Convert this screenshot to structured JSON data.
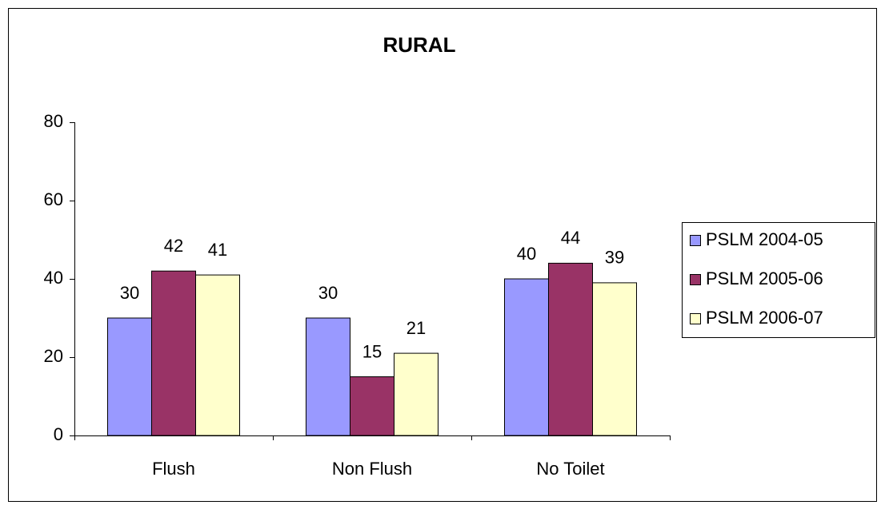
{
  "chart_data": {
    "type": "bar",
    "title": "RURAL",
    "categories": [
      "Flush",
      "Non Flush",
      "No Toilet"
    ],
    "series": [
      {
        "name": "PSLM 2004-05",
        "color": "#9999ff",
        "values": [
          30,
          30,
          40
        ]
      },
      {
        "name": "PSLM 2005-06",
        "color": "#993366",
        "values": [
          42,
          15,
          44
        ]
      },
      {
        "name": "PSLM 2006-07",
        "color": "#ffffcc",
        "values": [
          41,
          21,
          39
        ]
      }
    ],
    "ylim": [
      0,
      80
    ],
    "yticks": [
      0,
      20,
      40,
      60,
      80
    ],
    "grid": false,
    "legend": "right"
  }
}
